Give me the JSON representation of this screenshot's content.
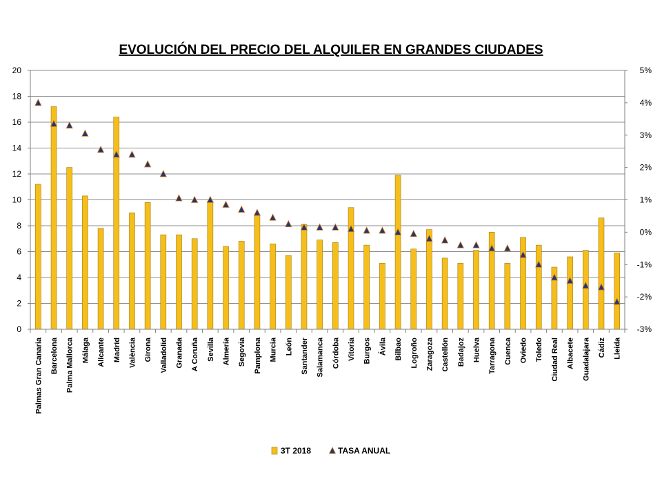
{
  "chart_data": {
    "type": "bar",
    "title": "EVOLUCIÓN DEL PRECIO DEL ALQUILER EN GRANDES CIUDADES",
    "categories": [
      "Palmas Gran Canaria",
      "Barcelona",
      "Palma Mallorca",
      "Málaga",
      "Alicante",
      "Madrid",
      "València",
      "Girona",
      "Valladolid",
      "Granada",
      "A Coruña",
      "Sevilla",
      "Almería",
      "Segovia",
      "Pamplona",
      "Murcia",
      "León",
      "Santander",
      "Salamanca",
      "Córdoba",
      "Vitoria",
      "Burgos",
      "Ávila",
      "Bilbao",
      "Logroño",
      "Zaragoza",
      "Castellón",
      "Badajoz",
      "Huelva",
      "Tarragona",
      "Cuenca",
      "Oviedo",
      "Toledo",
      "Ciudad Real",
      "Albacete",
      "Guadalajara",
      "Cádiz",
      "Lleida"
    ],
    "series": [
      {
        "name": "3T 2018",
        "type": "bar",
        "axis": "left",
        "color": "#F5BE1B",
        "values": [
          11.2,
          17.2,
          12.5,
          10.3,
          7.8,
          16.4,
          9.0,
          9.8,
          7.3,
          7.3,
          7.0,
          9.9,
          6.4,
          6.8,
          8.8,
          6.6,
          5.7,
          8.1,
          6.9,
          6.7,
          9.4,
          6.5,
          5.1,
          11.9,
          6.2,
          7.7,
          5.5,
          5.1,
          6.1,
          7.5,
          5.1,
          7.1,
          6.5,
          4.8,
          5.6,
          6.1,
          8.6,
          5.9
        ]
      },
      {
        "name": "TASA ANUAL",
        "type": "scatter",
        "axis": "right",
        "marker": "triangle",
        "color": "#1F3A6E",
        "edge_color": "#E07A1F",
        "values": [
          4.0,
          3.35,
          3.3,
          3.05,
          2.55,
          2.4,
          2.4,
          2.1,
          1.8,
          1.05,
          1.0,
          1.0,
          0.85,
          0.7,
          0.6,
          0.45,
          0.25,
          0.15,
          0.15,
          0.15,
          0.1,
          0.05,
          0.05,
          0.0,
          -0.05,
          -0.2,
          -0.25,
          -0.4,
          -0.4,
          -0.5,
          -0.5,
          -0.7,
          -1.0,
          -1.4,
          -1.5,
          -1.65,
          -1.7,
          -2.15
        ]
      }
    ],
    "y_left": {
      "lim": [
        0,
        20
      ],
      "ticks": [
        0,
        2,
        4,
        6,
        8,
        10,
        12,
        14,
        16,
        18,
        20
      ],
      "tick_labels": [
        "0",
        "2",
        "4",
        "6",
        "8",
        "10",
        "12",
        "14",
        "16",
        "18",
        "20"
      ]
    },
    "y_right": {
      "lim": [
        -3,
        5
      ],
      "ticks": [
        -3,
        -2,
        -1,
        0,
        1,
        2,
        3,
        4,
        5
      ],
      "tick_labels": [
        "-3%",
        "-2%",
        "-1%",
        "0%",
        "1%",
        "2%",
        "3%",
        "4%",
        "5%"
      ]
    },
    "xlabel": "",
    "ylabel": "",
    "grid": true,
    "legend": {
      "position": "bottom",
      "entries": [
        "3T 2018",
        "TASA ANUAL"
      ]
    }
  }
}
